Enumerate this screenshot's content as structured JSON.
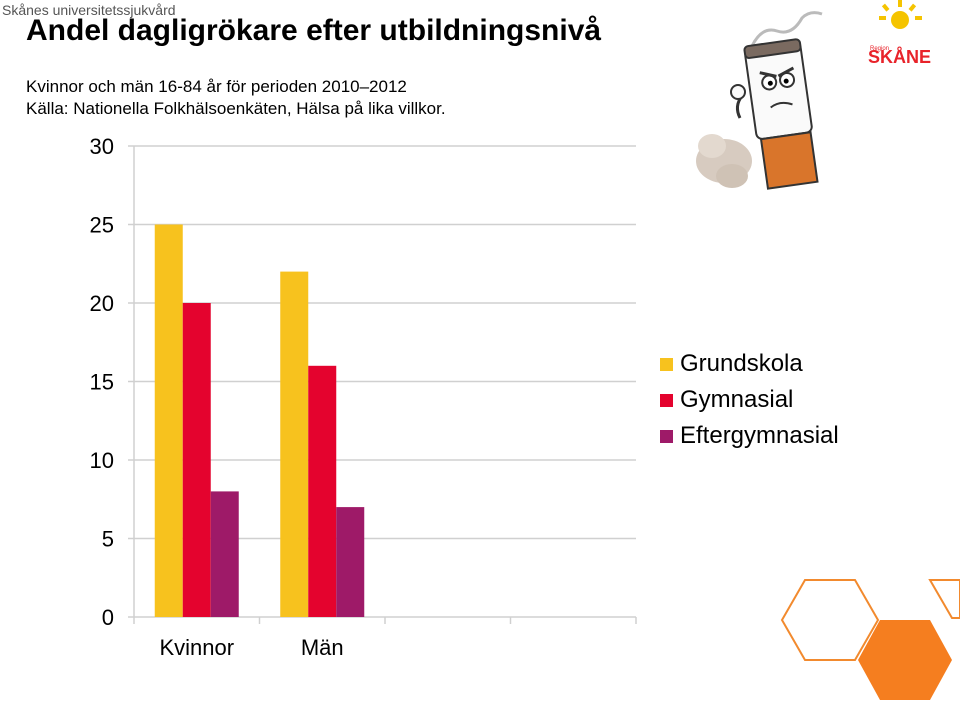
{
  "header": {
    "org": "Skånes universitetssjukvård",
    "title": "Andel dagligrökare efter utbildningsnivå",
    "subtitle": "Kvinnor och män 16-84 år för perioden 2010–2012",
    "source": "Källa: Nationella Folkhälsoenkäten, Hälsa på lika villkor."
  },
  "logo": {
    "text_small": "Region",
    "text_main": "SKÅNE",
    "color": "#e8232a",
    "sun_color": "#f5c400"
  },
  "chart_data": {
    "type": "bar",
    "categories": [
      "Kvinnor",
      "Män",
      "",
      ""
    ],
    "series": [
      {
        "name": "Grundskola",
        "color": "#f7c21e",
        "values": [
          25,
          22,
          null,
          null
        ]
      },
      {
        "name": "Gymnasial",
        "color": "#e4032e",
        "values": [
          20,
          16,
          null,
          null
        ]
      },
      {
        "name": "Eftergymnasial",
        "color": "#9e1a68",
        "values": [
          8,
          7,
          null,
          null
        ]
      }
    ],
    "ylim": [
      0,
      30
    ],
    "yticks": [
      0,
      5,
      10,
      15,
      20,
      25,
      30
    ],
    "grid": true,
    "legend": "right"
  }
}
